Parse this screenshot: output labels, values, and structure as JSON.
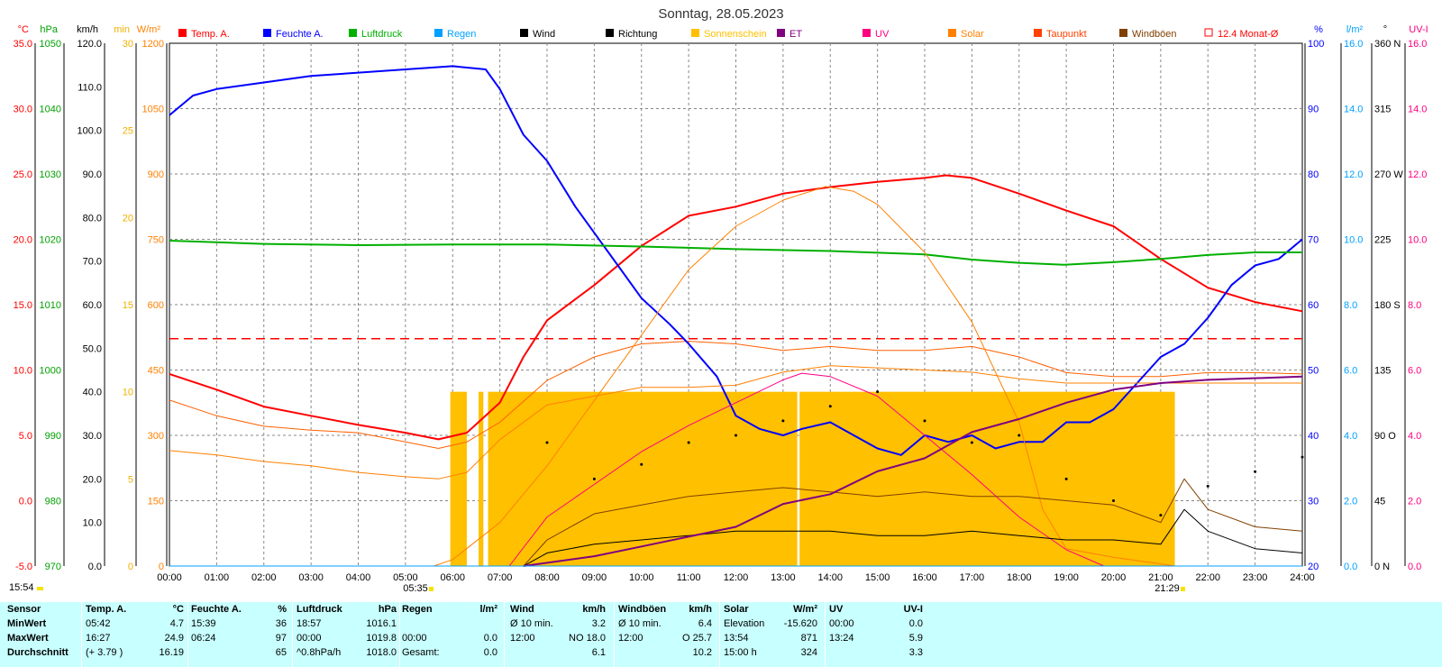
{
  "chart_data": {
    "type": "line",
    "title": "Sonntag, 28.05.2023",
    "x_ticks": [
      "00:00",
      "01:00",
      "02:00",
      "03:00",
      "04:00",
      "05:00",
      "06:00",
      "07:00",
      "08:00",
      "09:00",
      "10:00",
      "11:00",
      "12:00",
      "13:00",
      "14:00",
      "15:00",
      "16:00",
      "17:00",
      "18:00",
      "19:00",
      "20:00",
      "21:00",
      "22:00",
      "23:00",
      "24:00"
    ],
    "x_range": [
      0,
      24
    ],
    "grid": true,
    "legend_position": "top",
    "sunrise": "05:35",
    "sunset": "21:29",
    "left_axes": [
      {
        "unit": "°C",
        "color": "#ff0000",
        "range": [
          -5,
          35
        ],
        "ticks": [
          "35.0",
          "30.0",
          "25.0",
          "20.0",
          "15.0",
          "10.0",
          "5.0",
          "0.0",
          "-5.0"
        ]
      },
      {
        "unit": "hPa",
        "color": "#00a000",
        "range": [
          970,
          1050
        ],
        "ticks": [
          "1050",
          "1040",
          "1030",
          "1020",
          "1010",
          "1000",
          "990",
          "980",
          "970"
        ]
      },
      {
        "unit": "km/h",
        "color": "#000000",
        "range": [
          0,
          120
        ],
        "ticks": [
          "120.0",
          "110.0",
          "100.0",
          "90.0",
          "80.0",
          "70.0",
          "60.0",
          "50.0",
          "40.0",
          "30.0",
          "20.0",
          "10.0",
          "0.0"
        ]
      },
      {
        "unit": "min",
        "color": "#f0b000",
        "range": [
          0,
          30
        ],
        "ticks": [
          "30",
          "25",
          "20",
          "15",
          "10",
          "5",
          "0"
        ]
      },
      {
        "unit": "W/m²",
        "color": "#ff8000",
        "range": [
          0,
          1200
        ],
        "ticks": [
          "1200",
          "1050",
          "900",
          "750",
          "600",
          "450",
          "300",
          "150",
          "0"
        ]
      }
    ],
    "right_axes": [
      {
        "unit": "%",
        "color": "#0000ff",
        "range": [
          20,
          100
        ],
        "ticks": [
          "100",
          "90",
          "80",
          "70",
          "60",
          "50",
          "40",
          "30",
          "20"
        ]
      },
      {
        "unit": "l/m²",
        "color": "#00a0ff",
        "range": [
          0,
          16
        ],
        "ticks": [
          "16.0",
          "14.0",
          "12.0",
          "10.0",
          "8.0",
          "6.0",
          "4.0",
          "2.0",
          "0.0"
        ]
      },
      {
        "unit": "°",
        "color": "#000000",
        "range": [
          0,
          360
        ],
        "ticks": [
          "360 N",
          "315",
          "270 W",
          "225",
          "180 S",
          "135",
          "90 O",
          "45",
          "0 N"
        ]
      },
      {
        "unit": "UV-I",
        "color": "#ff0080",
        "range": [
          0,
          16
        ],
        "ticks": [
          "16.0",
          "14.0",
          "12.0",
          "10.0",
          "8.0",
          "6.0",
          "4.0",
          "2.0",
          "0.0"
        ]
      }
    ],
    "legend": [
      {
        "name": "Temp. A.",
        "color": "#ff0000"
      },
      {
        "name": "Feuchte A.",
        "color": "#0000ff"
      },
      {
        "name": "Luftdruck",
        "color": "#00b000"
      },
      {
        "name": "Regen",
        "color": "#00a0ff"
      },
      {
        "name": "Wind",
        "color": "#000000"
      },
      {
        "name": "Richtung",
        "color": "#000000"
      },
      {
        "name": "Sonnenschein",
        "color": "#ffc000"
      },
      {
        "name": "ET",
        "color": "#800080"
      },
      {
        "name": "UV",
        "color": "#ff0080"
      },
      {
        "name": "Solar",
        "color": "#ff8000"
      },
      {
        "name": "Taupunkt",
        "color": "#ff4000"
      },
      {
        "name": "Windböen",
        "color": "#804000"
      },
      {
        "name": "12.4 Monat-Ø",
        "color": "#ff0000",
        "dashed": true
      }
    ],
    "month_avg_temp": 12.4,
    "series": [
      {
        "name": "Temp. A.",
        "color": "#ff0000",
        "axis": "°C",
        "x": [
          0,
          1,
          2,
          3,
          4,
          5,
          5.7,
          6.3,
          7,
          7.5,
          8,
          9,
          10,
          11,
          12,
          13,
          14,
          15,
          16,
          16.45,
          17,
          18,
          19,
          20,
          21,
          22,
          23,
          24
        ],
        "values": [
          9.7,
          8.5,
          7.2,
          6.5,
          5.8,
          5.2,
          4.7,
          5.2,
          7.5,
          11,
          13.8,
          16.5,
          19.5,
          21.8,
          22.5,
          23.5,
          24,
          24.4,
          24.7,
          24.9,
          24.7,
          23.5,
          22.2,
          21,
          18.5,
          16.3,
          15.2,
          14.5
        ]
      },
      {
        "name": "Taupunkt",
        "color": "#ff6000",
        "axis": "°C",
        "x": [
          0,
          1,
          2,
          3,
          4,
          5,
          5.7,
          6.3,
          7,
          8,
          9,
          10,
          11,
          12,
          13,
          14,
          15,
          16,
          17,
          18,
          19,
          20,
          21,
          22,
          23,
          24
        ],
        "values": [
          7.7,
          6.5,
          5.7,
          5.4,
          5.2,
          4.5,
          4,
          4.5,
          6,
          9.2,
          11,
          12,
          12.2,
          12,
          11.5,
          11.8,
          11.5,
          11.5,
          11.8,
          11,
          9.8,
          9.5,
          9.5,
          9.8,
          9.8,
          9.7
        ]
      },
      {
        "name": "Feuchte A.",
        "color": "#0000ff",
        "axis": "%",
        "x": [
          0,
          0.5,
          1,
          2,
          3,
          4,
          5,
          6,
          6.7,
          7,
          7.5,
          8,
          8.6,
          9,
          9.5,
          10,
          10.6,
          11,
          11.6,
          12,
          12.5,
          13,
          13.4,
          14,
          14.5,
          15,
          15.5,
          16,
          16.5,
          17,
          17.5,
          18,
          18.5,
          19,
          19.5,
          20,
          20.5,
          21,
          21.5,
          22,
          22.5,
          23,
          23.5,
          24
        ],
        "values": [
          89,
          92,
          93,
          94,
          95,
          95.5,
          96,
          96.5,
          96,
          93,
          86,
          82,
          75,
          71,
          66,
          61,
          57,
          54,
          49,
          43,
          41,
          40,
          41,
          42,
          40,
          38,
          37,
          40,
          39,
          40,
          38,
          39,
          39,
          42,
          42,
          44,
          48,
          52,
          54,
          58,
          63,
          66,
          67,
          70
        ]
      },
      {
        "name": "Luftdruck",
        "color": "#00b000",
        "axis": "hPa",
        "x": [
          0,
          2,
          4,
          6,
          8,
          10,
          12,
          14,
          16,
          17,
          18,
          18.95,
          20,
          21,
          22,
          23,
          24
        ],
        "values": [
          1019.8,
          1019.3,
          1019.1,
          1019.2,
          1019.2,
          1018.9,
          1018.5,
          1018.2,
          1017.7,
          1016.9,
          1016.4,
          1016.1,
          1016.5,
          1017.0,
          1017.6,
          1018.0,
          1018.0
        ]
      },
      {
        "name": "Solar",
        "color": "#ff8000",
        "axis": "W/m²",
        "x": [
          5.6,
          6,
          7,
          8,
          9,
          10,
          11,
          12,
          13,
          13.9,
          14.5,
          15,
          16,
          17,
          18,
          18.5,
          19,
          20,
          21,
          21.3
        ],
        "values": [
          0,
          15,
          100,
          230,
          380,
          530,
          680,
          780,
          840,
          871,
          860,
          830,
          720,
          560,
          330,
          130,
          40,
          20,
          5,
          0
        ]
      },
      {
        "name": "Solar (Ø 10 min.)",
        "color": "#ff8000",
        "axis": "W/m²",
        "x": [
          0,
          1,
          2,
          3,
          4,
          5,
          5.7,
          6.3,
          7,
          8,
          9,
          10,
          11,
          12,
          13,
          14,
          15,
          16,
          17,
          18,
          19,
          20,
          21,
          22,
          23,
          24
        ],
        "values": [
          265,
          255,
          240,
          230,
          215,
          205,
          200,
          215,
          290,
          370,
          390,
          410,
          410,
          415,
          445,
          460,
          455,
          450,
          445,
          430,
          420,
          420,
          420,
          420,
          420,
          420
        ]
      },
      {
        "name": "UV",
        "color": "#ff0080",
        "axis": "UV-I",
        "x": [
          7.2,
          8,
          9,
          10,
          11,
          12,
          13,
          13.4,
          14,
          15,
          16,
          17,
          18,
          19,
          19.8
        ],
        "values": [
          0,
          1.5,
          2.5,
          3.5,
          4.3,
          5,
          5.7,
          5.9,
          5.8,
          5.2,
          4,
          2.8,
          1.5,
          0.5,
          0
        ]
      },
      {
        "name": "Wind",
        "color": "#000000",
        "axis": "km/h",
        "x": [
          7.5,
          8,
          9,
          10,
          11,
          12,
          13,
          14,
          15,
          16,
          17,
          18,
          19,
          20,
          21,
          21.5,
          22,
          23,
          24
        ],
        "values": [
          0,
          3,
          5,
          6,
          7,
          8,
          8,
          8,
          7,
          7,
          8,
          7,
          6,
          6,
          5,
          13,
          8,
          4,
          3
        ]
      },
      {
        "name": "Windböen",
        "color": "#804000",
        "axis": "km/h",
        "x": [
          7.5,
          8,
          9,
          10,
          11,
          12,
          13,
          14,
          15,
          16,
          17,
          18,
          19,
          20,
          21,
          21.5,
          22,
          23,
          24
        ],
        "values": [
          0,
          6,
          12,
          14,
          16,
          17,
          18,
          17,
          16,
          17,
          16,
          16,
          15,
          14,
          10,
          20,
          13,
          9,
          8
        ]
      },
      {
        "name": "Richtung",
        "color": "#000000",
        "axis": "°",
        "x": [
          8,
          9,
          10,
          11,
          12,
          13,
          14,
          15,
          16,
          17,
          18,
          19,
          20,
          21,
          22,
          23,
          24
        ],
        "values": [
          85,
          60,
          70,
          85,
          90,
          100,
          110,
          120,
          100,
          85,
          90,
          60,
          45,
          35,
          55,
          65,
          75
        ]
      },
      {
        "name": "ET",
        "color": "#800080",
        "axis": "l/m²",
        "x": [
          7.5,
          9,
          10,
          11,
          12,
          13,
          14,
          15,
          16,
          17,
          18,
          19,
          20,
          21,
          22,
          24
        ],
        "values": [
          0,
          0.3,
          0.6,
          0.9,
          1.2,
          1.9,
          2.2,
          2.9,
          3.3,
          4.1,
          4.5,
          5.0,
          5.4,
          5.6,
          5.7,
          5.8
        ]
      },
      {
        "name": "Regen",
        "color": "#00a0ff",
        "axis": "l/m²",
        "x": [
          0,
          24
        ],
        "values": [
          0,
          0
        ]
      }
    ],
    "sunshine_minutes": {
      "name": "Sonnenschein",
      "color": "#ffc000",
      "axis": "min",
      "value": 10,
      "intervals": [
        [
          5.95,
          6.3
        ],
        [
          6.55,
          6.65
        ],
        [
          6.75,
          13.3
        ],
        [
          13.35,
          21.3
        ]
      ]
    }
  },
  "timestamp": "15:54",
  "stats": {
    "columns": [
      {
        "header": "Sensor",
        "rows": [
          "MinWert",
          "MaxWert",
          "Durchschnitt"
        ]
      },
      {
        "header": "Temp. A.",
        "unit": "°C",
        "rows": [
          [
            "05:42",
            "4.7"
          ],
          [
            "16:27",
            "24.9"
          ],
          [
            "(+ 3.79 )",
            "16.19"
          ]
        ]
      },
      {
        "header": "Feuchte A.",
        "unit": "%",
        "rows": [
          [
            "15:39",
            "36"
          ],
          [
            "06:24",
            "97"
          ],
          [
            "",
            "65"
          ]
        ]
      },
      {
        "header": "Luftdruck",
        "unit": "hPa",
        "rows": [
          [
            "18:57",
            "1016.1"
          ],
          [
            "00:00",
            "1019.8"
          ],
          [
            "^0.8hPa/h",
            "1018.0"
          ]
        ]
      },
      {
        "header": "Regen",
        "unit": "l/m²",
        "rows": [
          [
            "",
            ""
          ],
          [
            "00:00",
            "0.0"
          ],
          [
            "Gesamt:",
            "0.0"
          ]
        ]
      },
      {
        "header": "Wind",
        "unit": "km/h",
        "rows": [
          [
            "Ø 10 min.",
            "3.2"
          ],
          [
            "12:00",
            "NO 18.0"
          ],
          [
            "",
            "6.1"
          ]
        ]
      },
      {
        "header": "Windböen",
        "unit": "km/h",
        "rows": [
          [
            "Ø 10 min.",
            "6.4"
          ],
          [
            "12:00",
            "O 25.7"
          ],
          [
            "",
            "10.2"
          ]
        ]
      },
      {
        "header": "Solar",
        "unit": "W/m²",
        "rows": [
          [
            "Elevation",
            "-15.620"
          ],
          [
            "13:54",
            "871"
          ],
          [
            "15:00 h",
            "324"
          ]
        ]
      },
      {
        "header": "UV",
        "unit": "UV-I",
        "rows": [
          [
            "00:00",
            "0.0"
          ],
          [
            "13:24",
            "5.9"
          ],
          [
            "",
            "3.3"
          ]
        ]
      }
    ]
  }
}
